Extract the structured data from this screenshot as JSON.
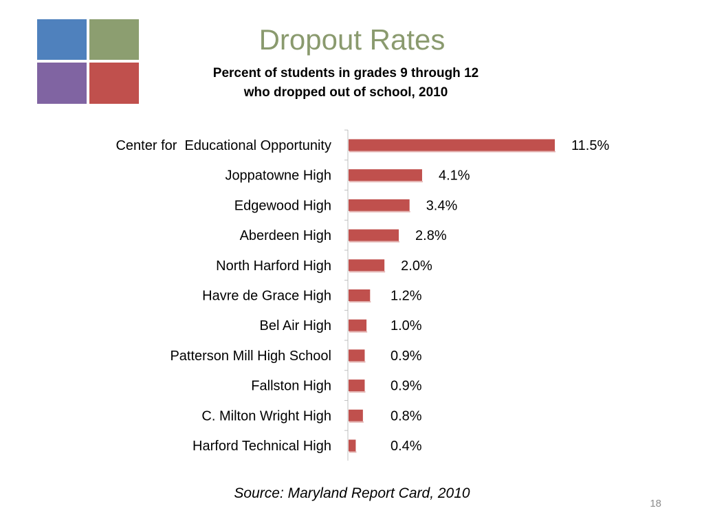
{
  "title": "Dropout Rates",
  "subtitle_lines": [
    "Percent of students in grades 9 through 12",
    "who dropped out of school, 2010"
  ],
  "source": "Source: Maryland Report Card, 2010",
  "page_number": "18",
  "logo_colors": {
    "top_left": "#4f81bd",
    "top_right": "#8c9e70",
    "bottom_left": "#8064a2",
    "bottom_right": "#c0504d"
  },
  "bar_color": "#c0504d",
  "chart_data": {
    "type": "bar",
    "orientation": "horizontal",
    "categories": [
      "Center for  Educational Opportunity",
      "Joppatowne High",
      "Edgewood High",
      "Aberdeen High",
      "North Harford High",
      "Havre de Grace High",
      "Bel Air High",
      "Patterson Mill High School",
      "Fallston High",
      "C. Milton Wright High",
      "Harford Technical High"
    ],
    "values": [
      11.5,
      4.1,
      3.4,
      2.8,
      2.0,
      1.2,
      1.0,
      0.9,
      0.9,
      0.8,
      0.4
    ],
    "data_labels": [
      "11.5%",
      "4.1%",
      "3.4%",
      "2.8%",
      "2.0%",
      "1.2%",
      "1.0%",
      "0.9%",
      "0.9%",
      "0.8%",
      "0.4%"
    ],
    "title": "",
    "xlabel": "",
    "ylabel": "",
    "xlim": [
      0,
      11.5
    ],
    "grid": false
  }
}
